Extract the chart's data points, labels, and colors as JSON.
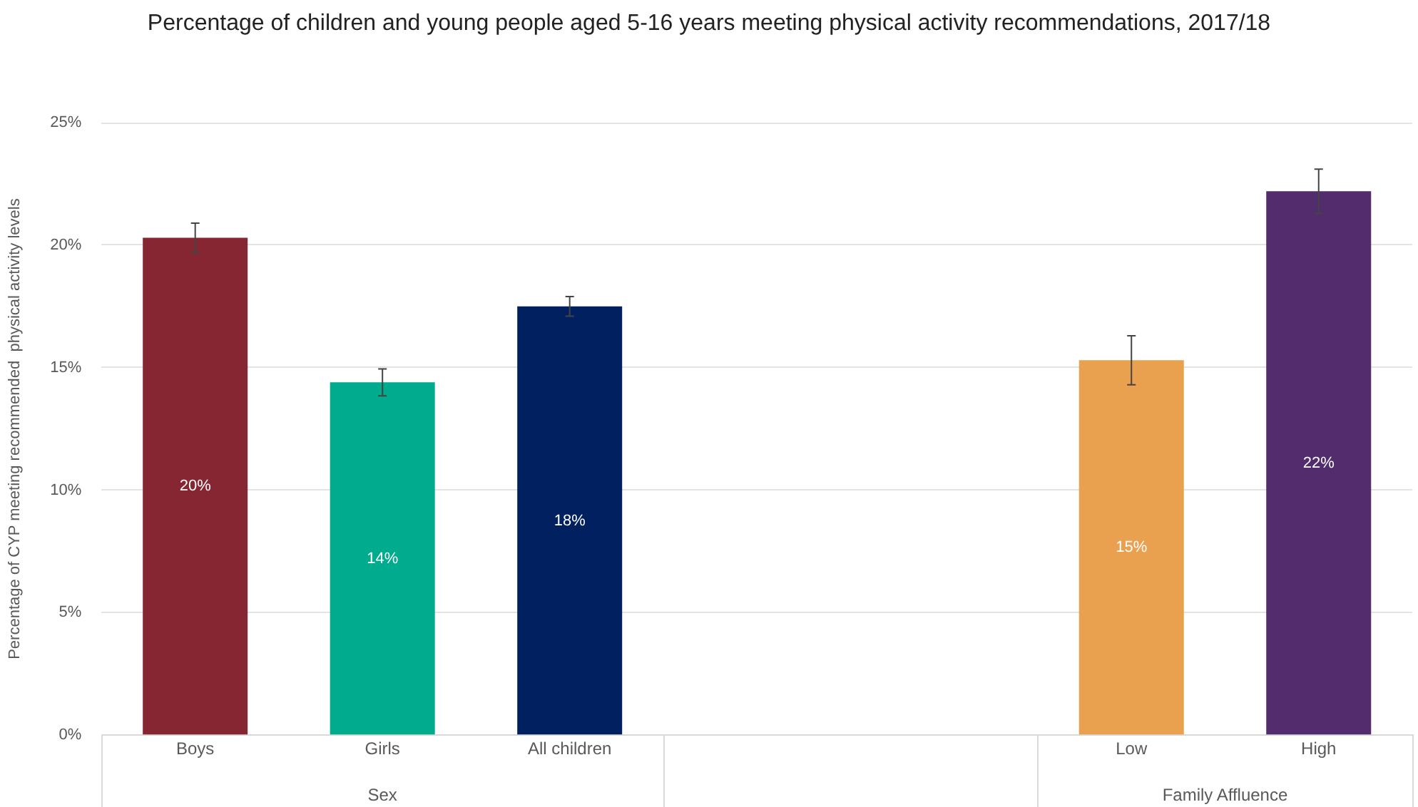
{
  "chart_data": {
    "type": "bar",
    "title": "Percentage of children and young people aged 5-16 years meeting physical activity recommendations, 2017/18",
    "ylabel": "Percentage of CYP meeting recommended  physical activity levels",
    "categories": [
      "Boys",
      "Girls",
      "All children",
      null,
      null,
      "Low",
      "High"
    ],
    "values": [
      20.3,
      14.4,
      17.5,
      null,
      null,
      15.3,
      22.2
    ],
    "colors": [
      "#862633",
      "#00ab8e",
      "#002060",
      "#ffffff",
      "#ffffff",
      "#e9a04f",
      "#512d6d"
    ],
    "errors": [
      0.6,
      0.55,
      0.4,
      null,
      null,
      1.0,
      0.9
    ],
    "value_labels": [
      "20%",
      "14%",
      "18%",
      null,
      null,
      "15%",
      "22%"
    ],
    "annotations": [
      "Sex",
      "Family Affluence"
    ],
    "ylim": [
      0,
      25
    ],
    "yticks": [
      {
        "value": 0,
        "label": "0%"
      },
      {
        "value": 5,
        "label": "5%"
      },
      {
        "value": 10,
        "label": "10%"
      },
      {
        "value": 15,
        "label": "15%"
      },
      {
        "value": 20,
        "label": "20%"
      },
      {
        "value": 25,
        "label": "25%"
      }
    ],
    "grid": "y",
    "legend": false
  }
}
